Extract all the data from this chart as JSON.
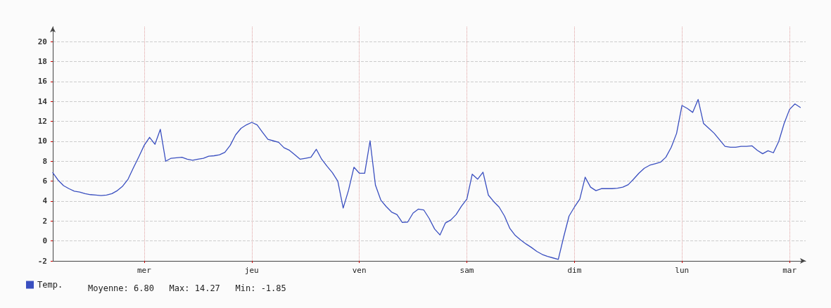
{
  "chart_data": {
    "type": "line",
    "legend": "bottom left",
    "grid": true,
    "marker": "none",
    "line_style": "solid",
    "annotations": [
      "Moyenne: 6.80   Max: 14.27   Min: -1.85"
    ],
    "ylim": [
      -2,
      21.5
    ],
    "yticks": [
      -2,
      0,
      2,
      4,
      6,
      8,
      10,
      12,
      14,
      16,
      18,
      20
    ],
    "categories": [
      null,
      null,
      null,
      null,
      null,
      null,
      null,
      null,
      null,
      null,
      null,
      null,
      null,
      null,
      null,
      null,
      null,
      "mer",
      null,
      null,
      null,
      null,
      null,
      null,
      null,
      null,
      null,
      null,
      null,
      null,
      null,
      null,
      null,
      null,
      null,
      null,
      null,
      "jeu",
      null,
      null,
      null,
      null,
      null,
      null,
      null,
      null,
      null,
      null,
      null,
      null,
      null,
      null,
      null,
      null,
      null,
      null,
      null,
      "ven",
      null,
      null,
      null,
      null,
      null,
      null,
      null,
      null,
      null,
      null,
      null,
      null,
      null,
      null,
      null,
      null,
      null,
      null,
      null,
      "sam",
      null,
      null,
      null,
      null,
      null,
      null,
      null,
      null,
      null,
      null,
      null,
      null,
      null,
      null,
      null,
      null,
      null,
      null,
      null,
      "dim",
      null,
      null,
      null,
      null,
      null,
      null,
      null,
      null,
      null,
      null,
      null,
      null,
      null,
      null,
      null,
      null,
      null,
      null,
      null,
      "lun",
      null,
      null,
      null,
      null,
      null,
      null,
      null,
      null,
      null,
      null,
      null,
      null,
      null,
      null,
      null,
      null,
      null,
      null,
      null,
      "mar",
      null,
      null,
      null
    ],
    "series": [
      {
        "name": "Temp.",
        "color": "#3a4fc0",
        "values": [
          6.85,
          6.1,
          5.55,
          5.25,
          5.0,
          4.9,
          4.75,
          4.65,
          4.6,
          4.55,
          4.6,
          4.75,
          5.05,
          5.5,
          6.2,
          7.35,
          8.45,
          9.6,
          10.4,
          9.7,
          11.2,
          8.0,
          8.3,
          8.35,
          8.4,
          8.2,
          8.1,
          8.2,
          8.3,
          8.5,
          8.55,
          8.65,
          8.9,
          9.6,
          10.65,
          11.3,
          11.65,
          11.9,
          11.65,
          10.9,
          10.2,
          10.05,
          9.9,
          9.35,
          9.1,
          8.65,
          8.2,
          8.3,
          8.4,
          9.2,
          8.2,
          7.5,
          6.85,
          6.0,
          3.3,
          5.1,
          7.4,
          6.8,
          6.8,
          10.05,
          5.6,
          4.1,
          3.45,
          2.9,
          2.65,
          1.85,
          1.9,
          2.8,
          3.2,
          3.1,
          2.25,
          1.2,
          0.6,
          1.8,
          2.1,
          2.65,
          3.5,
          4.2,
          6.7,
          6.2,
          6.9,
          4.6,
          3.95,
          3.4,
          2.5,
          1.25,
          0.55,
          0.1,
          -0.3,
          -0.65,
          -1.05,
          -1.35,
          -1.55,
          -1.7,
          -1.85,
          0.4,
          2.5,
          3.4,
          4.2,
          6.4,
          5.4,
          5.05,
          5.25,
          5.25,
          5.25,
          5.3,
          5.4,
          5.65,
          6.2,
          6.8,
          7.3,
          7.6,
          7.75,
          7.9,
          8.4,
          9.4,
          10.8,
          13.6,
          13.3,
          12.9,
          14.2,
          11.8,
          11.3,
          10.8,
          10.15,
          9.5,
          9.4,
          9.4,
          9.5,
          9.5,
          9.55,
          9.1,
          8.75,
          9.05,
          8.85,
          10.0,
          11.8,
          13.2,
          13.75,
          13.4,
          null
        ]
      }
    ]
  }
}
